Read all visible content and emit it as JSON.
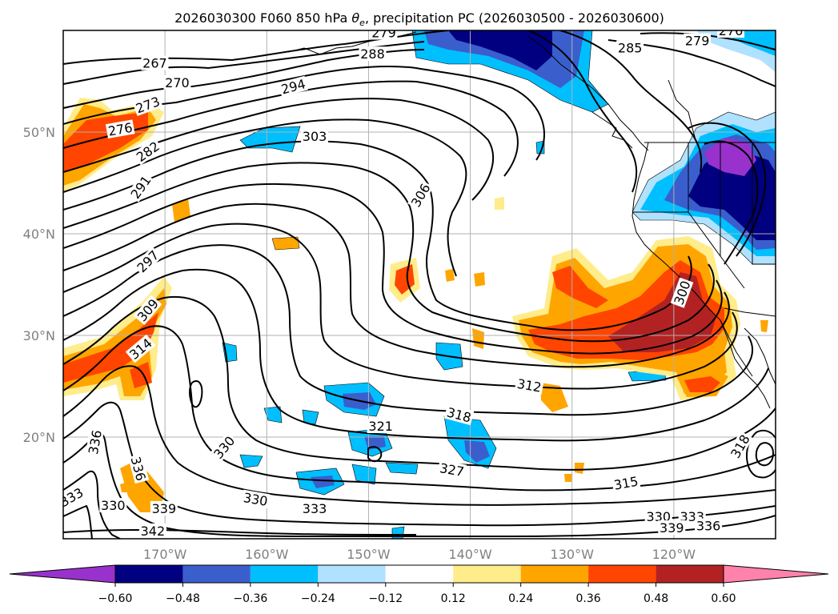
{
  "chart_data": {
    "type": "contour-map",
    "title_prefix": "2026030300 F060 850 hPa ",
    "title_symbol": "θ",
    "title_sub": "e",
    "title_suffix": ", precipitation PC (2026030500 - 2026030600)",
    "lon_range": [
      -180,
      -110
    ],
    "lat_range": [
      10,
      60
    ],
    "lon_ticks": [
      {
        "value": -170,
        "label": "170°W"
      },
      {
        "value": -160,
        "label": "160°W"
      },
      {
        "value": -150,
        "label": "150°W"
      },
      {
        "value": -140,
        "label": "140°W"
      },
      {
        "value": -130,
        "label": "130°W"
      },
      {
        "value": -120,
        "label": "120°W"
      }
    ],
    "lat_ticks": [
      {
        "value": 50,
        "label": "50°N"
      },
      {
        "value": 40,
        "label": "40°N"
      },
      {
        "value": 30,
        "label": "30°N"
      },
      {
        "value": 20,
        "label": "20°N"
      }
    ],
    "colorbar": {
      "boundaries": [
        -0.6,
        -0.48,
        -0.36,
        -0.24,
        -0.12,
        0.12,
        0.24,
        0.36,
        0.48,
        0.6
      ],
      "tick_labels": [
        "−0.60",
        "−0.48",
        "−0.36",
        "−0.24",
        "−0.12",
        "0.12",
        "0.24",
        "0.36",
        "0.48",
        "0.60"
      ],
      "under_color": "#9932cc",
      "colors": [
        "#000080",
        "#3a5fcd",
        "#00bfff",
        "#b0e2ff",
        "#ffffff",
        "#ffec8b",
        "#ffa500",
        "#ff4500",
        "#b22222"
      ],
      "over_color": "#ff82ab"
    },
    "contour_labels": [
      {
        "text": "267",
        "lon": -171.0,
        "lat": 56.8,
        "rot": 0
      },
      {
        "text": "270",
        "lon": -168.8,
        "lat": 54.9,
        "rot": 0
      },
      {
        "text": "273",
        "lon": -171.7,
        "lat": 52.7,
        "rot": -20
      },
      {
        "text": "276",
        "lon": -174.4,
        "lat": 50.3,
        "rot": -10
      },
      {
        "text": "282",
        "lon": -171.7,
        "lat": 48.1,
        "rot": -35
      },
      {
        "text": "291",
        "lon": -172.4,
        "lat": 44.6,
        "rot": -55
      },
      {
        "text": "297",
        "lon": -171.7,
        "lat": 37.3,
        "rot": -45
      },
      {
        "text": "309",
        "lon": -171.7,
        "lat": 32.5,
        "rot": -50
      },
      {
        "text": "314",
        "lon": -172.4,
        "lat": 28.7,
        "rot": -40
      },
      {
        "text": "336",
        "lon": -176.9,
        "lat": 19.5,
        "rot": -80
      },
      {
        "text": "336",
        "lon": -172.6,
        "lat": 16.9,
        "rot": 75
      },
      {
        "text": "333",
        "lon": -179.2,
        "lat": 14.1,
        "rot": -30
      },
      {
        "text": "330",
        "lon": -175.1,
        "lat": 13.3,
        "rot": 0
      },
      {
        "text": "339",
        "lon": -170.1,
        "lat": 13.0,
        "rot": 0
      },
      {
        "text": "342",
        "lon": -171.2,
        "lat": 10.8,
        "rot": 0
      },
      {
        "text": "330",
        "lon": -164.2,
        "lat": 19.0,
        "rot": -50
      },
      {
        "text": "330",
        "lon": -161.1,
        "lat": 13.9,
        "rot": 10
      },
      {
        "text": "333",
        "lon": -155.3,
        "lat": 13.0,
        "rot": 0
      },
      {
        "text": "321",
        "lon": -148.8,
        "lat": 21.1,
        "rot": 0
      },
      {
        "text": "318",
        "lon": -141.1,
        "lat": 22.2,
        "rot": 15
      },
      {
        "text": "327",
        "lon": -141.8,
        "lat": 16.8,
        "rot": 10
      },
      {
        "text": "312",
        "lon": -134.2,
        "lat": 25.1,
        "rot": 10
      },
      {
        "text": "315",
        "lon": -124.7,
        "lat": 15.5,
        "rot": -10
      },
      {
        "text": "318",
        "lon": -113.5,
        "lat": 19.1,
        "rot": -60
      },
      {
        "text": "330",
        "lon": -121.5,
        "lat": 12.2,
        "rot": 0
      },
      {
        "text": "333",
        "lon": -118.2,
        "lat": 12.2,
        "rot": 0
      },
      {
        "text": "339",
        "lon": -120.2,
        "lat": 11.1,
        "rot": 0
      },
      {
        "text": "336",
        "lon": -116.6,
        "lat": 11.3,
        "rot": 0
      },
      {
        "text": "303",
        "lon": -155.3,
        "lat": 49.6,
        "rot": 0
      },
      {
        "text": "294",
        "lon": -157.4,
        "lat": 54.5,
        "rot": -15
      },
      {
        "text": "288",
        "lon": -149.6,
        "lat": 57.7,
        "rot": 0
      },
      {
        "text": "279",
        "lon": -148.5,
        "lat": 59.8,
        "rot": 0
      },
      {
        "text": "306",
        "lon": -144.9,
        "lat": 43.8,
        "rot": -60
      },
      {
        "text": "285",
        "lon": -124.3,
        "lat": 58.3,
        "rot": 0
      },
      {
        "text": "279",
        "lon": -117.7,
        "lat": 59.0,
        "rot": 0
      },
      {
        "text": "276",
        "lon": -114.4,
        "lat": 60.0,
        "rot": 0
      },
      {
        "text": "300",
        "lon": -119.2,
        "lat": 34.2,
        "rot": -70
      }
    ],
    "notes": "Equivalent potential temperature contours (K) at 850 hPa with shaded precipitation PC anomaly."
  }
}
